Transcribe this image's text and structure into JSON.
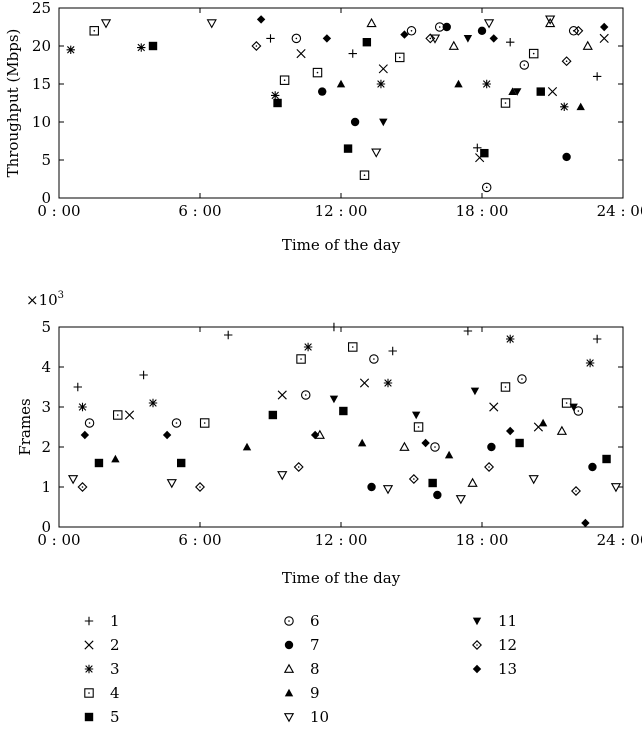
{
  "chart_data": [
    {
      "type": "scatter",
      "title": "",
      "xlabel": "Time of the day",
      "ylabel": "Throughput (Mbps)",
      "xlim": [
        0,
        24
      ],
      "ylim": [
        0,
        25
      ],
      "x_ticks": [
        "0 : 00",
        "6 : 00",
        "12 : 00",
        "18 : 00",
        "24 : 00"
      ],
      "y_ticks": [
        "0",
        "5",
        "10",
        "15",
        "20",
        "25"
      ],
      "grid": false,
      "series": [
        {
          "name": "1",
          "points": [
            [
              9.0,
              21
            ],
            [
              12.5,
              19
            ],
            [
              17.8,
              6.6
            ],
            [
              19.2,
              20.5
            ],
            [
              22.9,
              16
            ]
          ]
        },
        {
          "name": "2",
          "points": [
            [
              10.3,
              19
            ],
            [
              13.8,
              17
            ],
            [
              17.9,
              5.3
            ],
            [
              21.0,
              14
            ],
            [
              23.2,
              21
            ]
          ]
        },
        {
          "name": "3",
          "points": [
            [
              0.5,
              19.5
            ],
            [
              3.5,
              19.8
            ],
            [
              9.2,
              13.5
            ],
            [
              13.7,
              15
            ],
            [
              18.2,
              15
            ],
            [
              21.5,
              12
            ]
          ]
        },
        {
          "name": "4",
          "points": [
            [
              1.5,
              22
            ],
            [
              9.6,
              15.5
            ],
            [
              11.0,
              16.5
            ],
            [
              13.0,
              3.0
            ],
            [
              14.5,
              18.5
            ],
            [
              19.0,
              12.5
            ],
            [
              20.2,
              19
            ]
          ]
        },
        {
          "name": "5",
          "points": [
            [
              4.0,
              20.0
            ],
            [
              9.3,
              12.5
            ],
            [
              12.3,
              6.5
            ],
            [
              13.1,
              20.5
            ],
            [
              18.1,
              5.9
            ],
            [
              20.5,
              14
            ]
          ]
        },
        {
          "name": "6",
          "points": [
            [
              10.1,
              21
            ],
            [
              15.0,
              22
            ],
            [
              16.2,
              22.5
            ],
            [
              18.2,
              1.4
            ],
            [
              19.8,
              17.5
            ],
            [
              21.9,
              22
            ]
          ]
        },
        {
          "name": "7",
          "points": [
            [
              11.2,
              14
            ],
            [
              12.6,
              10
            ],
            [
              16.5,
              22.5
            ],
            [
              18.0,
              22
            ],
            [
              21.6,
              5.4
            ]
          ]
        },
        {
          "name": "8",
          "points": [
            [
              13.3,
              23
            ],
            [
              16.8,
              20
            ],
            [
              20.9,
              23
            ],
            [
              22.5,
              20
            ]
          ]
        },
        {
          "name": "9",
          "points": [
            [
              12.0,
              15
            ],
            [
              17.0,
              15
            ],
            [
              19.3,
              14
            ],
            [
              22.2,
              12
            ]
          ]
        },
        {
          "name": "10",
          "points": [
            [
              2.0,
              23
            ],
            [
              6.5,
              23
            ],
            [
              13.5,
              6
            ],
            [
              16.0,
              21
            ],
            [
              18.3,
              23
            ],
            [
              20.9,
              23.5
            ]
          ]
        },
        {
          "name": "11",
          "points": [
            [
              13.8,
              10
            ],
            [
              17.4,
              21
            ],
            [
              19.5,
              14
            ]
          ]
        },
        {
          "name": "12",
          "points": [
            [
              8.4,
              20
            ],
            [
              15.8,
              21
            ],
            [
              21.6,
              18
            ],
            [
              22.1,
              22
            ]
          ]
        },
        {
          "name": "13",
          "points": [
            [
              8.6,
              23.5
            ],
            [
              11.4,
              21
            ],
            [
              14.7,
              21.5
            ],
            [
              18.5,
              21
            ],
            [
              23.2,
              22.5
            ]
          ]
        }
      ]
    },
    {
      "type": "scatter",
      "title": "",
      "xlabel": "Time of the day",
      "ylabel": "Frames",
      "multiplier": "×10",
      "multiplier_exponent": "3",
      "xlim": [
        0,
        24
      ],
      "ylim": [
        0,
        5
      ],
      "x_ticks": [
        "0 : 00",
        "6 : 00",
        "12 : 00",
        "18 : 00",
        "24 : 00"
      ],
      "y_ticks": [
        "0",
        "1",
        "2",
        "3",
        "4",
        "5"
      ],
      "grid": false,
      "series": [
        {
          "name": "1",
          "points": [
            [
              0.8,
              3.5
            ],
            [
              3.6,
              3.8
            ],
            [
              7.2,
              4.8
            ],
            [
              11.7,
              5.0
            ],
            [
              14.2,
              4.4
            ],
            [
              17.4,
              4.9
            ],
            [
              22.9,
              4.7
            ]
          ]
        },
        {
          "name": "2",
          "points": [
            [
              3.0,
              2.8
            ],
            [
              9.5,
              3.3
            ],
            [
              13.0,
              3.6
            ],
            [
              18.5,
              3.0
            ],
            [
              20.4,
              2.5
            ]
          ]
        },
        {
          "name": "3",
          "points": [
            [
              1.0,
              3.0
            ],
            [
              4.0,
              3.1
            ],
            [
              10.6,
              4.5
            ],
            [
              14.0,
              3.6
            ],
            [
              19.2,
              4.7
            ],
            [
              22.6,
              4.1
            ]
          ]
        },
        {
          "name": "4",
          "points": [
            [
              2.5,
              2.8
            ],
            [
              6.2,
              2.6
            ],
            [
              10.3,
              4.2
            ],
            [
              12.5,
              4.5
            ],
            [
              15.3,
              2.5
            ],
            [
              19.0,
              3.5
            ],
            [
              21.6,
              3.1
            ]
          ]
        },
        {
          "name": "5",
          "points": [
            [
              1.7,
              1.6
            ],
            [
              5.2,
              1.6
            ],
            [
              9.1,
              2.8
            ],
            [
              12.1,
              2.9
            ],
            [
              15.9,
              1.1
            ],
            [
              19.6,
              2.1
            ],
            [
              23.3,
              1.7
            ]
          ]
        },
        {
          "name": "6",
          "points": [
            [
              1.3,
              2.6
            ],
            [
              5.0,
              2.6
            ],
            [
              10.5,
              3.3
            ],
            [
              13.4,
              4.2
            ],
            [
              16.0,
              2.0
            ],
            [
              19.7,
              3.7
            ],
            [
              22.1,
              2.9
            ]
          ]
        },
        {
          "name": "7",
          "points": [
            [
              13.3,
              1.0
            ],
            [
              16.1,
              0.8
            ],
            [
              18.4,
              2.0
            ],
            [
              22.7,
              1.5
            ]
          ]
        },
        {
          "name": "8",
          "points": [
            [
              11.1,
              2.3
            ],
            [
              14.7,
              2.0
            ],
            [
              17.6,
              1.1
            ],
            [
              21.4,
              2.4
            ]
          ]
        },
        {
          "name": "9",
          "points": [
            [
              2.4,
              1.7
            ],
            [
              8.0,
              2.0
            ],
            [
              12.9,
              2.1
            ],
            [
              16.6,
              1.8
            ],
            [
              20.6,
              2.6
            ]
          ]
        },
        {
          "name": "10",
          "points": [
            [
              0.6,
              1.2
            ],
            [
              4.8,
              1.1
            ],
            [
              9.5,
              1.3
            ],
            [
              14.0,
              0.95
            ],
            [
              17.1,
              0.7
            ],
            [
              20.2,
              1.2
            ],
            [
              23.7,
              1.0
            ]
          ]
        },
        {
          "name": "11",
          "points": [
            [
              11.7,
              3.2
            ],
            [
              15.2,
              2.8
            ],
            [
              17.7,
              3.4
            ],
            [
              21.9,
              3.0
            ]
          ]
        },
        {
          "name": "12",
          "points": [
            [
              1.0,
              1.0
            ],
            [
              6.0,
              1.0
            ],
            [
              10.2,
              1.5
            ],
            [
              15.1,
              1.2
            ],
            [
              18.3,
              1.5
            ],
            [
              22.0,
              0.9
            ]
          ]
        },
        {
          "name": "13",
          "points": [
            [
              1.1,
              2.3
            ],
            [
              4.6,
              2.3
            ],
            [
              10.9,
              2.3
            ],
            [
              15.6,
              2.1
            ],
            [
              19.2,
              2.4
            ],
            [
              22.4,
              0.1
            ]
          ]
        }
      ]
    }
  ],
  "legend": {
    "entries": [
      {
        "label": "1",
        "marker": "plus"
      },
      {
        "label": "2",
        "marker": "cross"
      },
      {
        "label": "3",
        "marker": "star"
      },
      {
        "label": "4",
        "marker": "square-dot"
      },
      {
        "label": "5",
        "marker": "filled-square"
      },
      {
        "label": "6",
        "marker": "circle-dot"
      },
      {
        "label": "7",
        "marker": "filled-circle"
      },
      {
        "label": "8",
        "marker": "open-triangle-up"
      },
      {
        "label": "9",
        "marker": "filled-triangle-up"
      },
      {
        "label": "10",
        "marker": "open-triangle-down"
      },
      {
        "label": "11",
        "marker": "filled-triangle-down"
      },
      {
        "label": "12",
        "marker": "diamond-dot"
      },
      {
        "label": "13",
        "marker": "filled-diamond"
      }
    ]
  }
}
